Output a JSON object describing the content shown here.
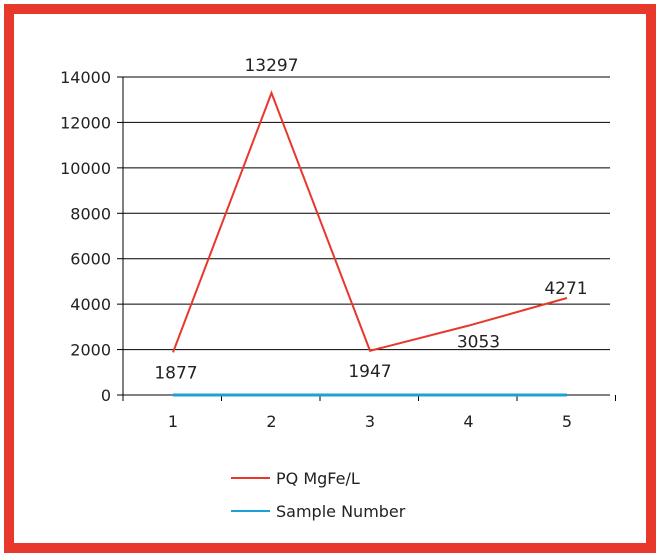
{
  "chart_data": {
    "type": "line",
    "x": [
      1,
      2,
      3,
      4,
      5
    ],
    "categories": [
      "1",
      "2",
      "3",
      "4",
      "5"
    ],
    "ylim": [
      0,
      14000
    ],
    "yticks": [
      0,
      2000,
      4000,
      6000,
      8000,
      10000,
      12000,
      14000
    ],
    "grid": true,
    "legend_position": "bottom",
    "series": [
      {
        "name": "PQ MgFe/L",
        "color": "#e8382b",
        "values": [
          1877,
          13297,
          1947,
          3053,
          4271
        ],
        "labels": [
          "1877",
          "13297",
          "1947",
          "3053",
          "4271"
        ]
      },
      {
        "name": "Sample Number",
        "color": "#1ba1d8",
        "values": [
          0,
          0,
          0,
          0,
          0
        ]
      }
    ]
  }
}
